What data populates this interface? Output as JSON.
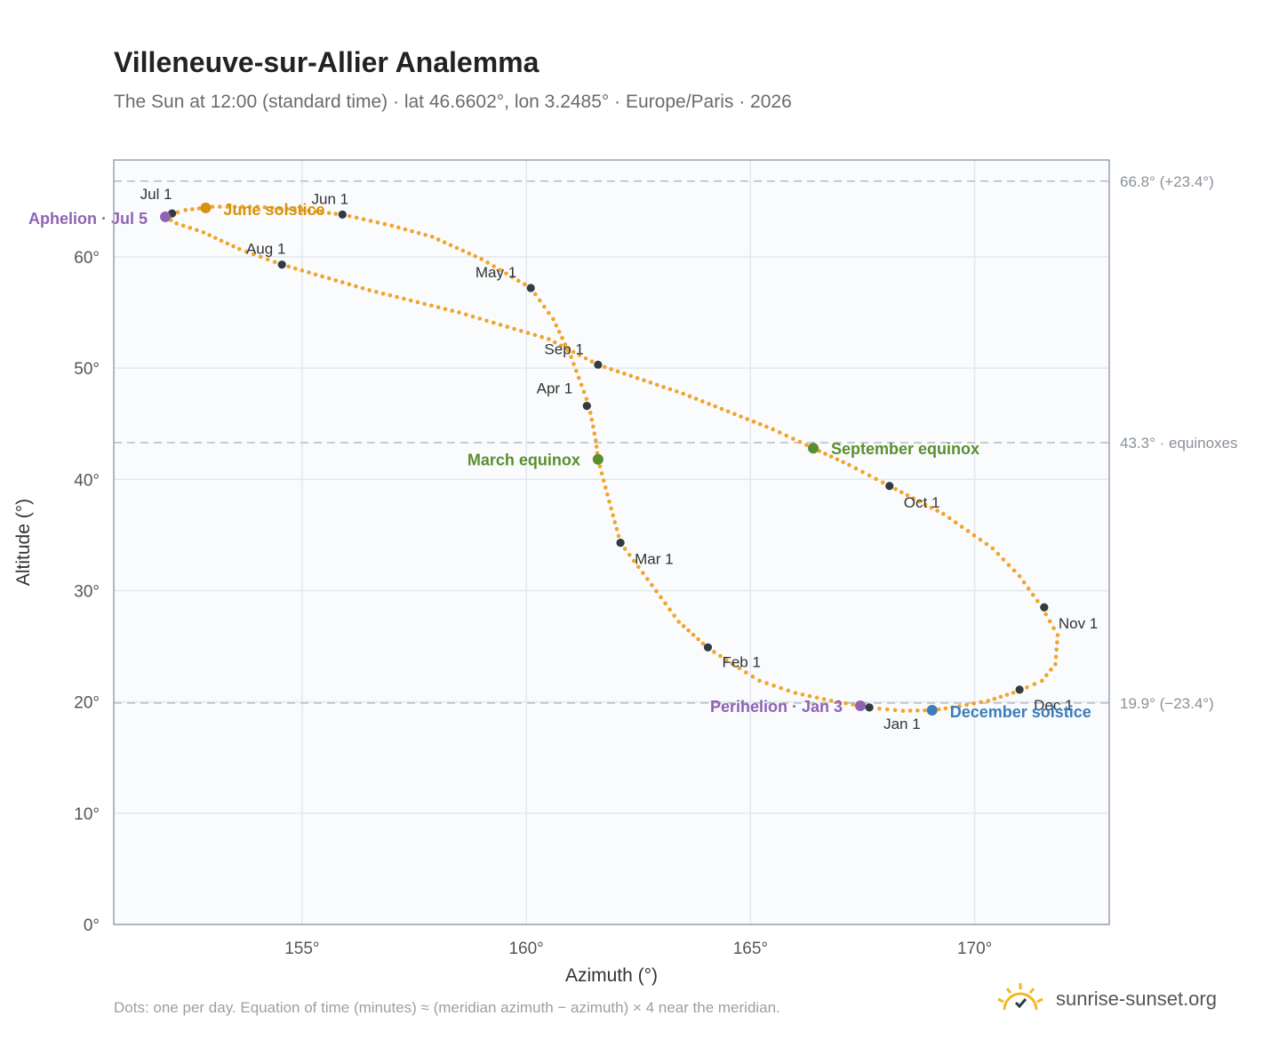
{
  "title": "Villeneuve-sur-Allier Analemma",
  "subtitle": "The Sun at 12:00 (standard time) · lat 46.6602°, lon 3.2485° · Europe/Paris · 2026",
  "footnote": "Dots: one per day. Equation of time (minutes) ≈ (meridian azimuth − azimuth) × 4 near the meridian.",
  "brand": {
    "text": "sunrise-sunset.org",
    "icon": "sun-logo-icon"
  },
  "colors": {
    "path": "#f2a42b",
    "month_marker": "#333a40",
    "june_solstice": "#d4930c",
    "december_solstice": "#3b7dbb",
    "equinox": "#5a8f2e",
    "apsis": "#8e63b3",
    "grid": "#e3e8ee",
    "plot_bg": "#f9fbfd",
    "ref_line": "#b5bcc4"
  },
  "chart_data": {
    "type": "scatter",
    "xlabel": "Azimuth (°)",
    "ylabel": "Altitude (°)",
    "xlim": [
      150.8,
      173.0
    ],
    "ylim": [
      0,
      68.7
    ],
    "xticks": [
      155,
      160,
      165,
      170
    ],
    "xtick_labels": [
      "155°",
      "160°",
      "165°",
      "170°"
    ],
    "yticks": [
      0,
      10,
      20,
      30,
      40,
      50,
      60
    ],
    "ytick_labels": [
      "0°",
      "10°",
      "20°",
      "30°",
      "40°",
      "50°",
      "60°"
    ],
    "grid": true,
    "reference_lines": [
      {
        "y": 66.8,
        "label": "66.8° (+23.4°)"
      },
      {
        "y": 43.3,
        "label": "43.3° · equinoxes"
      },
      {
        "y": 19.9,
        "label": "19.9° (−23.4°)"
      }
    ],
    "series": [
      {
        "key": "daily",
        "points": [
          [
            169.05,
            19.25
          ],
          [
            168.4,
            19.2
          ],
          [
            167.7,
            19.45
          ],
          [
            167.45,
            19.65
          ],
          [
            166.8,
            20.1
          ],
          [
            166.0,
            20.8
          ],
          [
            165.2,
            21.9
          ],
          [
            164.6,
            23.4
          ],
          [
            164.05,
            24.85
          ],
          [
            163.4,
            27.2
          ],
          [
            162.8,
            30.5
          ],
          [
            162.1,
            34.3
          ],
          [
            161.85,
            38.0
          ],
          [
            161.6,
            41.8
          ],
          [
            161.55,
            43.5
          ],
          [
            161.4,
            46.6
          ],
          [
            161.0,
            51.0
          ],
          [
            160.6,
            54.4
          ],
          [
            160.1,
            57.2
          ],
          [
            159.0,
            59.8
          ],
          [
            157.9,
            61.8
          ],
          [
            157.0,
            62.8
          ],
          [
            155.9,
            63.8
          ],
          [
            155.0,
            64.2
          ],
          [
            154.0,
            64.5
          ],
          [
            153.0,
            64.5
          ],
          [
            152.4,
            64.2
          ],
          [
            152.05,
            63.8
          ],
          [
            151.95,
            63.6
          ],
          [
            152.2,
            63.0
          ],
          [
            152.8,
            62.2
          ],
          [
            153.6,
            60.7
          ],
          [
            154.55,
            59.3
          ],
          [
            156.5,
            57.0
          ],
          [
            158.5,
            55.0
          ],
          [
            160.5,
            52.6
          ],
          [
            161.6,
            50.3
          ],
          [
            163.5,
            47.7
          ],
          [
            165.5,
            44.5
          ],
          [
            166.4,
            42.8
          ],
          [
            167.2,
            41.3
          ],
          [
            168.1,
            39.4
          ],
          [
            169.3,
            36.9
          ],
          [
            170.4,
            33.8
          ],
          [
            171.0,
            31.3
          ],
          [
            171.5,
            28.5
          ],
          [
            171.85,
            26.0
          ],
          [
            171.8,
            23.4
          ],
          [
            171.5,
            21.9
          ],
          [
            171.0,
            21.0
          ],
          [
            170.3,
            20.1
          ],
          [
            169.5,
            19.5
          ],
          [
            169.05,
            19.25
          ]
        ]
      },
      {
        "key": "months",
        "points": [
          {
            "label": "Jan 1",
            "x": 167.65,
            "y": 19.5
          },
          {
            "label": "Feb 1",
            "x": 164.05,
            "y": 24.9
          },
          {
            "label": "Mar 1",
            "x": 162.1,
            "y": 34.3
          },
          {
            "label": "Apr 1",
            "x": 161.35,
            "y": 46.6
          },
          {
            "label": "May 1",
            "x": 160.1,
            "y": 57.2
          },
          {
            "label": "Jun 1",
            "x": 155.9,
            "y": 63.8
          },
          {
            "label": "Jul 1",
            "x": 152.1,
            "y": 63.9
          },
          {
            "label": "Aug 1",
            "x": 154.55,
            "y": 59.3
          },
          {
            "label": "Sep 1",
            "x": 161.6,
            "y": 50.3
          },
          {
            "label": "Oct 1",
            "x": 168.1,
            "y": 39.4
          },
          {
            "label": "Nov 1",
            "x": 171.55,
            "y": 28.5
          },
          {
            "label": "Dec 1",
            "x": 171.0,
            "y": 21.1
          }
        ]
      },
      {
        "key": "events",
        "points": [
          {
            "label": "June solstice",
            "x": 152.85,
            "y": 64.4,
            "color_key": "june_solstice"
          },
          {
            "label": "December solstice",
            "x": 169.05,
            "y": 19.25,
            "color_key": "december_solstice"
          },
          {
            "label": "March equinox",
            "x": 161.6,
            "y": 41.8,
            "color_key": "equinox"
          },
          {
            "label": "September equinox",
            "x": 166.4,
            "y": 42.8,
            "color_key": "equinox"
          },
          {
            "label": "Aphelion · Jul 5",
            "x": 151.95,
            "y": 63.6,
            "color_key": "apsis"
          },
          {
            "label": "Perihelion · Jan 3",
            "x": 167.45,
            "y": 19.65,
            "color_key": "apsis"
          }
        ]
      }
    ]
  }
}
